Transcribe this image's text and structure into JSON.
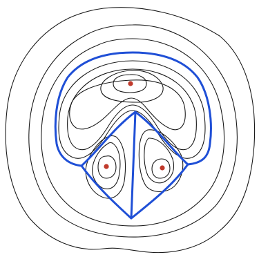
{
  "diagram": {
    "type": "contour-plot",
    "colors": {
      "background": "#ffffff",
      "contour": "#1a1a1a",
      "separatrix": "#1f4fd6",
      "critical_point": "#c0392b"
    },
    "critical_points": {
      "maxima": [
        "top",
        "lower-left",
        "lower-right"
      ],
      "saddles": [
        "center-top",
        "lower-center"
      ]
    }
  }
}
